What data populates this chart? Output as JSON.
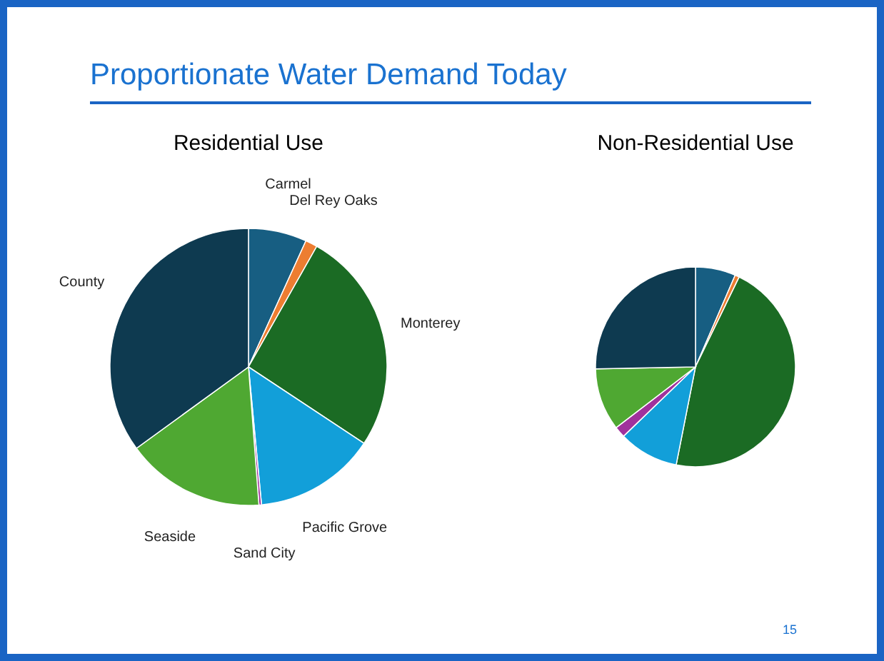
{
  "chart_data": [
    {
      "type": "pie",
      "title": "Residential Use",
      "annotations": [
        "Proportionate Water Demand Today",
        "15"
      ],
      "categories": [
        "Carmel",
        "Del Rey Oaks",
        "Monterey",
        "Pacific Grove",
        "Sand City",
        "Seaside",
        "County"
      ],
      "values": [
        6.8,
        1.4,
        26.1,
        14.2,
        0.3,
        16.2,
        35.0
      ],
      "colors": [
        "#175e82",
        "#ed7d31",
        "#1b6b24",
        "#129fd9",
        "#a0319c",
        "#4fa832",
        "#0e3a50"
      ]
    },
    {
      "type": "pie",
      "title": "Non-Residential Use",
      "categories": [
        null,
        null,
        null,
        null,
        null,
        null,
        null
      ],
      "values": [
        6.5,
        0.7,
        45.9,
        9.7,
        1.8,
        10.1,
        25.3
      ],
      "colors": [
        "#175e82",
        "#ed7d31",
        "#1b6b24",
        "#129fd9",
        "#a0319c",
        "#4fa832",
        "#0e3a50"
      ]
    }
  ]
}
